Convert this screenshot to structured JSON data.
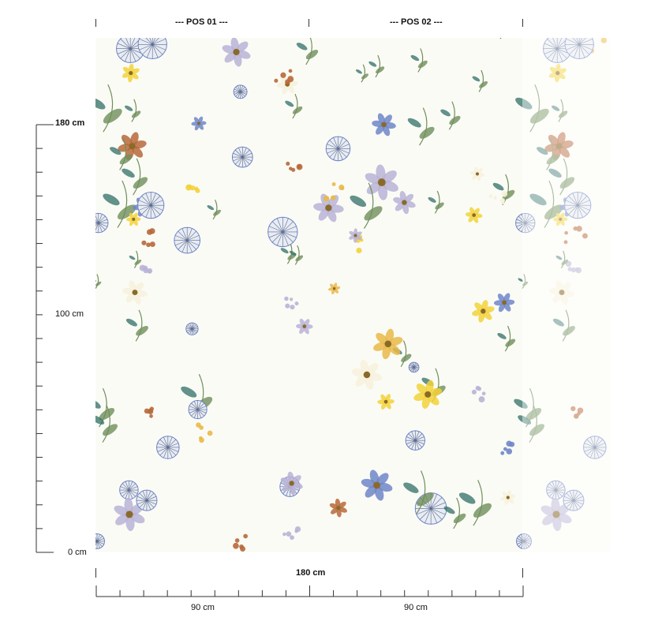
{
  "header": {
    "pos_01": "--- POS 01 ---",
    "pos_02": "--- POS 02 ---"
  },
  "vertical_scale": {
    "top_label": "180 cm",
    "mid_label": "100 cm",
    "bottom_label": "0 cm"
  },
  "horizontal_scale": {
    "total_label": "180 cm",
    "panel_1_label": "90 cm",
    "panel_2_label": "90 cm"
  },
  "colors": {
    "ink": "#222222",
    "leaf_green": "#6f8f5a",
    "leaf_teal": "#2f6f66",
    "flower_yellow": "#f2d23a",
    "flower_blue": "#6f86c9",
    "flower_lilac": "#b9b3d6",
    "flower_rust": "#b7683a"
  },
  "pattern": {
    "name": "botanical-floral-wallpaper"
  }
}
